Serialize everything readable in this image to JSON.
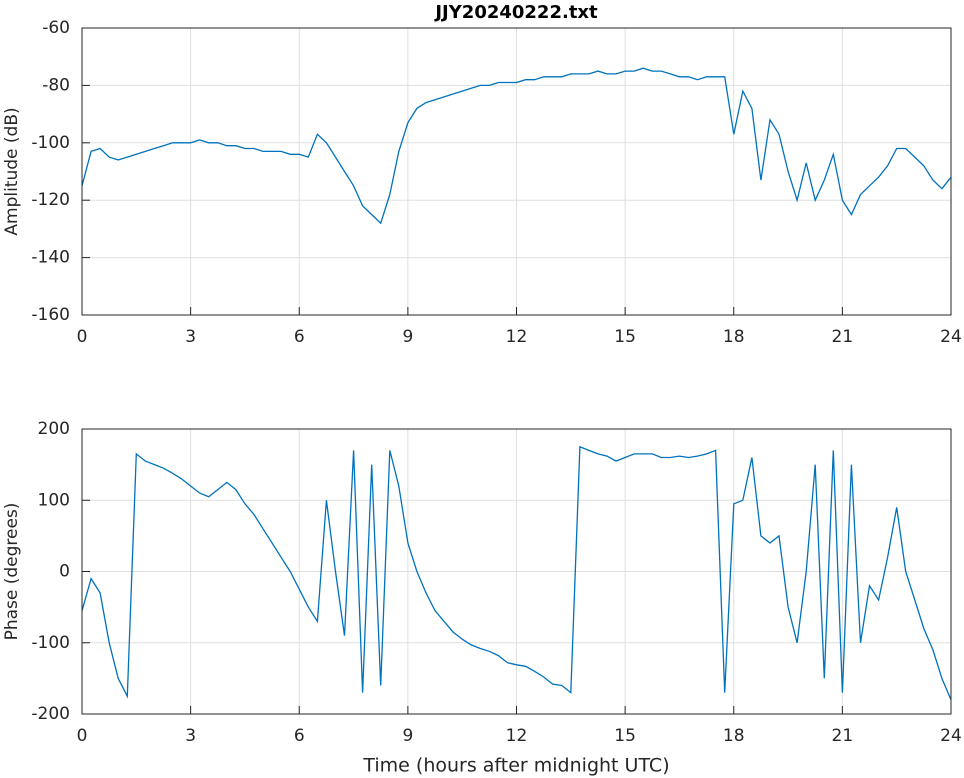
{
  "chart_data": [
    {
      "type": "line",
      "title": "JJY20240222.txt",
      "ylabel": "Amplitude (dB)",
      "x": [
        0,
        0.25,
        0.5,
        0.75,
        1,
        1.25,
        1.5,
        1.75,
        2,
        2.25,
        2.5,
        2.75,
        3,
        3.25,
        3.5,
        3.75,
        4,
        4.25,
        4.5,
        4.75,
        5,
        5.25,
        5.5,
        5.75,
        6,
        6.25,
        6.5,
        6.75,
        7,
        7.25,
        7.5,
        7.75,
        8,
        8.25,
        8.5,
        8.75,
        9,
        9.25,
        9.5,
        9.75,
        10,
        10.25,
        10.5,
        10.75,
        11,
        11.25,
        11.5,
        11.75,
        12,
        12.25,
        12.5,
        12.75,
        13,
        13.25,
        13.5,
        13.75,
        14,
        14.25,
        14.5,
        14.75,
        15,
        15.25,
        15.5,
        15.75,
        16,
        16.25,
        16.5,
        16.75,
        17,
        17.25,
        17.5,
        17.75,
        18,
        18.25,
        18.5,
        18.75,
        19,
        19.25,
        19.5,
        19.75,
        20,
        20.25,
        20.5,
        20.75,
        21,
        21.25,
        21.5,
        21.75,
        22,
        22.25,
        22.5,
        22.75,
        23,
        23.25,
        23.5,
        23.75,
        24
      ],
      "values": [
        -115,
        -103,
        -102,
        -105,
        -106,
        -105,
        -104,
        -103,
        -102,
        -101,
        -100,
        -100,
        -100,
        -99,
        -100,
        -100,
        -101,
        -101,
        -102,
        -102,
        -103,
        -103,
        -103,
        -104,
        -104,
        -105,
        -97,
        -100,
        -105,
        -110,
        -115,
        -122,
        -125,
        -128,
        -118,
        -103,
        -93,
        -88,
        -86,
        -85,
        -84,
        -83,
        -82,
        -81,
        -80,
        -80,
        -79,
        -79,
        -79,
        -78,
        -78,
        -77,
        -77,
        -77,
        -76,
        -76,
        -76,
        -75,
        -76,
        -76,
        -75,
        -75,
        -74,
        -75,
        -75,
        -76,
        -77,
        -77,
        -78,
        -77,
        -77,
        -77,
        -97,
        -82,
        -88,
        -113,
        -92,
        -97,
        -110,
        -120,
        -107,
        -120,
        -113,
        -104,
        -120,
        -125,
        -118,
        -115,
        -112,
        -108,
        -102,
        -102,
        -105,
        -108,
        -113,
        -116,
        -112
      ],
      "color": "#0072bd",
      "xlim": [
        0,
        24
      ],
      "xticks": [
        0,
        3,
        6,
        9,
        12,
        15,
        18,
        21,
        24
      ],
      "ylim": [
        -160,
        -60
      ],
      "yticks": [
        -160,
        -140,
        -120,
        -100,
        -80,
        -60
      ],
      "grid": true
    },
    {
      "type": "line",
      "ylabel": "Phase (degrees)",
      "xlabel": "Time (hours after midnight UTC)",
      "x": [
        0,
        0.25,
        0.5,
        0.75,
        1,
        1.25,
        1.5,
        1.75,
        2,
        2.25,
        2.5,
        2.75,
        3,
        3.25,
        3.5,
        3.75,
        4,
        4.25,
        4.5,
        4.75,
        5,
        5.25,
        5.5,
        5.75,
        6,
        6.25,
        6.5,
        6.75,
        7,
        7.25,
        7.5,
        7.75,
        8,
        8.25,
        8.5,
        8.75,
        9,
        9.25,
        9.5,
        9.75,
        10,
        10.25,
        10.5,
        10.75,
        11,
        11.25,
        11.5,
        11.75,
        12,
        12.25,
        12.5,
        12.75,
        13,
        13.25,
        13.5,
        13.75,
        14,
        14.25,
        14.5,
        14.75,
        15,
        15.25,
        15.5,
        15.75,
        16,
        16.25,
        16.5,
        16.75,
        17,
        17.25,
        17.5,
        17.75,
        18,
        18.25,
        18.5,
        18.75,
        19,
        19.25,
        19.5,
        19.75,
        20,
        20.25,
        20.5,
        20.75,
        21,
        21.25,
        21.5,
        21.75,
        22,
        22.25,
        22.5,
        22.75,
        23,
        23.25,
        23.5,
        23.75,
        24
      ],
      "values": [
        -55,
        -10,
        -30,
        -100,
        -150,
        -175,
        165,
        155,
        150,
        145,
        138,
        130,
        120,
        110,
        105,
        115,
        125,
        115,
        95,
        80,
        60,
        40,
        20,
        0,
        -25,
        -50,
        -70,
        100,
        0,
        -90,
        170,
        -170,
        150,
        -160,
        170,
        120,
        40,
        0,
        -30,
        -55,
        -70,
        -85,
        -95,
        -103,
        -108,
        -112,
        -118,
        -128,
        -131,
        -133,
        -140,
        -148,
        -158,
        -160,
        -170,
        175,
        170,
        165,
        162,
        155,
        160,
        165,
        165,
        165,
        160,
        160,
        162,
        160,
        162,
        165,
        170,
        -170,
        95,
        100,
        160,
        50,
        40,
        50,
        -50,
        -100,
        0,
        150,
        -150,
        170,
        -170,
        150,
        -100,
        -20,
        -40,
        20,
        90,
        0,
        -40,
        -80,
        -110,
        -150,
        -180
      ],
      "color": "#0072bd",
      "xlim": [
        0,
        24
      ],
      "xticks": [
        0,
        3,
        6,
        9,
        12,
        15,
        18,
        21,
        24
      ],
      "ylim": [
        -200,
        200
      ],
      "yticks": [
        -200,
        -100,
        0,
        100,
        200
      ],
      "grid": true
    }
  ]
}
